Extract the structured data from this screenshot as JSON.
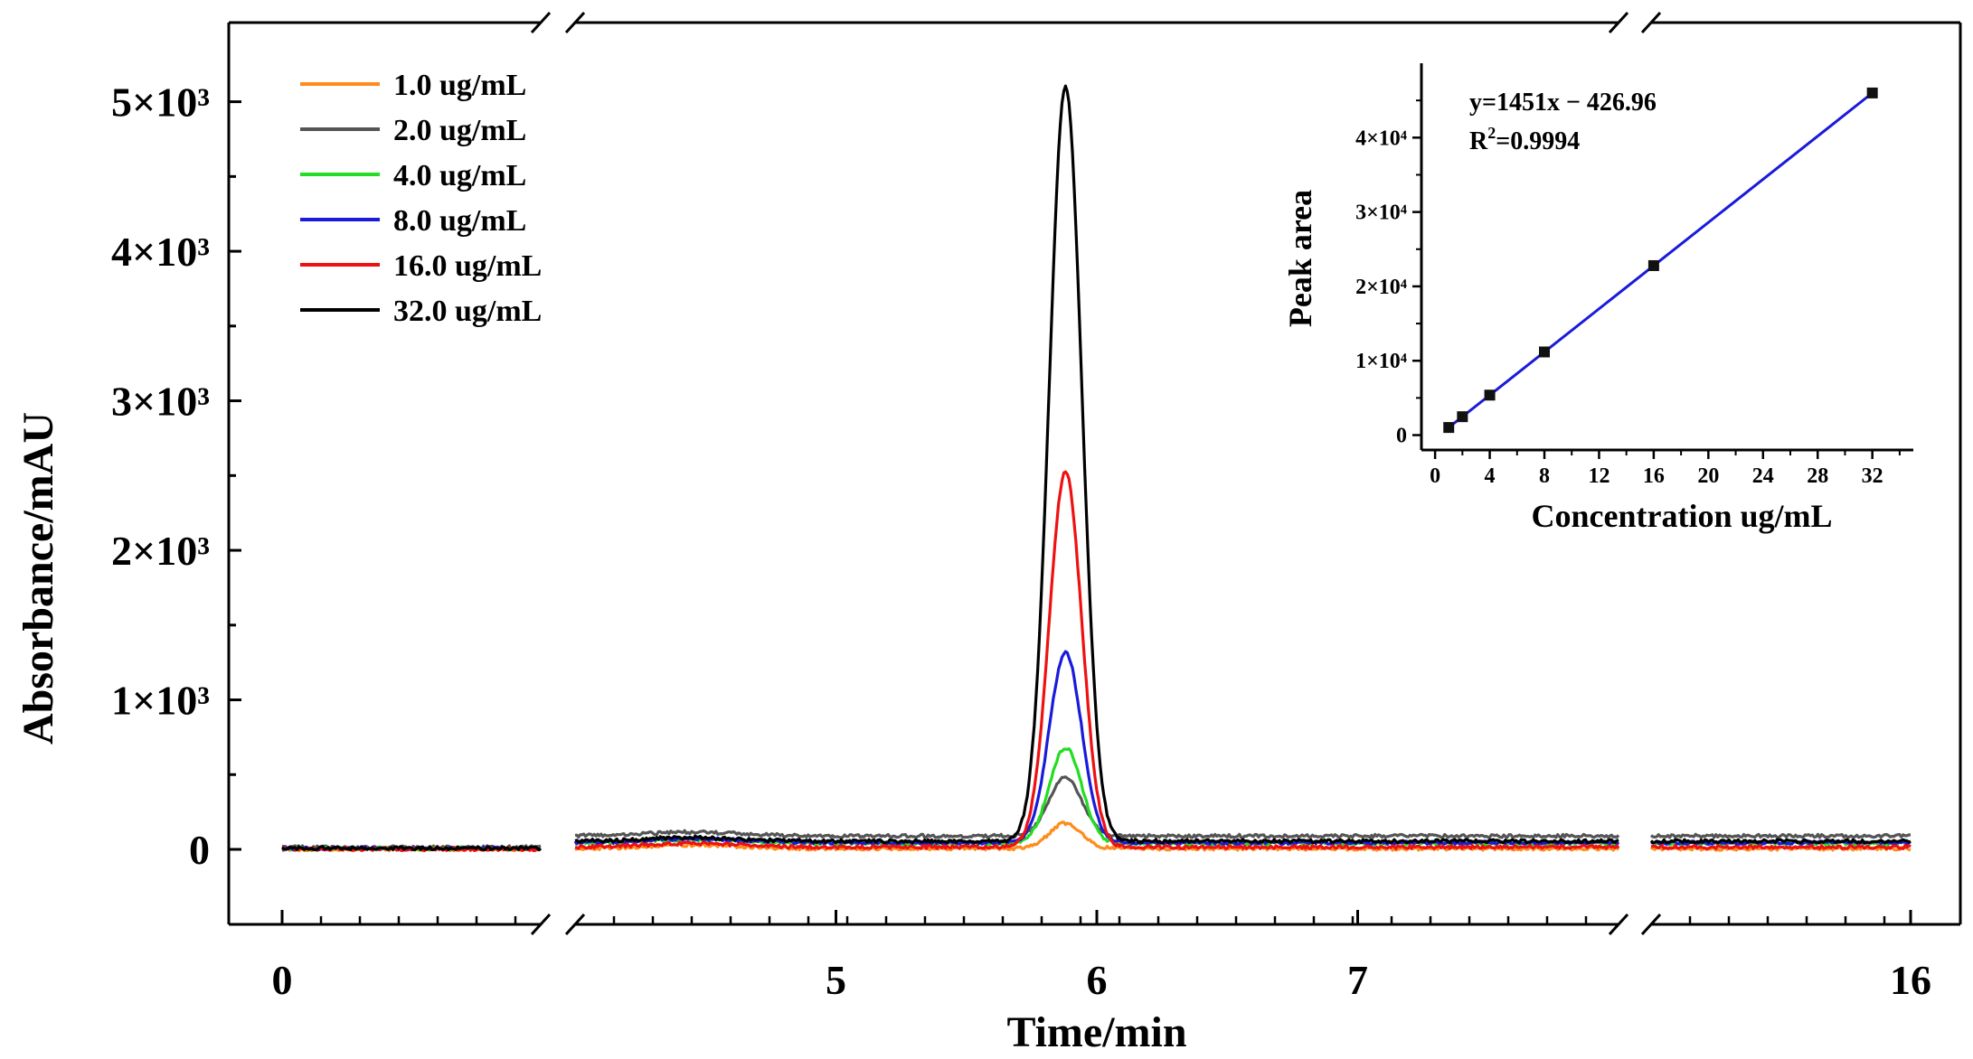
{
  "chart_data": [
    {
      "type": "line",
      "title": "",
      "xlabel": "Time/min",
      "ylabel": "Absorbance/mAU",
      "ylim": [
        -500,
        5500
      ],
      "y_ticks": [
        0,
        1000,
        2000,
        3000,
        4000,
        5000
      ],
      "y_tick_labels": [
        "0",
        "1×10³",
        "2×10³",
        "3×10³",
        "4×10³",
        "5×10³"
      ],
      "x_segments": [
        {
          "range": [
            0,
            5
          ],
          "tick_labels": [
            {
              "value": 0,
              "label": "0"
            }
          ]
        },
        {
          "range": [
            4.0,
            8.0
          ],
          "tick_labels": [
            {
              "value": 5,
              "label": "5"
            },
            {
              "value": 6,
              "label": "6"
            },
            {
              "value": 7,
              "label": "7"
            }
          ]
        },
        {
          "range": [
            11,
            16
          ],
          "tick_labels": [
            {
              "value": 16,
              "label": "16"
            }
          ]
        }
      ],
      "peak_time": 5.88,
      "peak_sigma": 0.062,
      "legend_position": "top-left",
      "series": [
        {
          "name": "1.0 ug/mL",
          "color": "#ff8c1a",
          "peak": 170,
          "baseline": 5
        },
        {
          "name": "2.0 ug/mL",
          "color": "#555555",
          "peak": 390,
          "baseline": 90
        },
        {
          "name": "4.0 ug/mL",
          "color": "#22dd22",
          "peak": 640,
          "baseline": 40
        },
        {
          "name": "8.0 ug/mL",
          "color": "#1a1adb",
          "peak": 1270,
          "baseline": 45
        },
        {
          "name": "16.0 ug/mL",
          "color": "#ee1111",
          "peak": 2510,
          "baseline": 15
        },
        {
          "name": "32.0 ug/mL",
          "color": "#000000",
          "peak": 5050,
          "baseline": 55
        }
      ]
    },
    {
      "type": "scatter",
      "title": "",
      "xlabel": "Concentration ug/mL",
      "ylabel": "Peak area",
      "xlim": [
        -1,
        35
      ],
      "ylim": [
        -2000,
        50000
      ],
      "x_ticks": [
        0,
        4,
        8,
        12,
        16,
        20,
        24,
        28,
        32
      ],
      "y_ticks": [
        0,
        10000,
        20000,
        30000,
        40000
      ],
      "y_tick_labels": [
        "0",
        "1×10⁴",
        "2×10⁴",
        "3×10⁴",
        "4×10⁴"
      ],
      "x": [
        1,
        2,
        4,
        8,
        16,
        32
      ],
      "y": [
        1024,
        2475,
        5377,
        11181,
        22789,
        46005
      ],
      "fit": {
        "slope": 1451,
        "intercept": -426.96,
        "color": "#1a1adb"
      },
      "equation": "y=1451x − 426.96",
      "r_squared_label": "R",
      "r_squared_sup": "2",
      "r_squared_value": "=0.9994"
    }
  ]
}
